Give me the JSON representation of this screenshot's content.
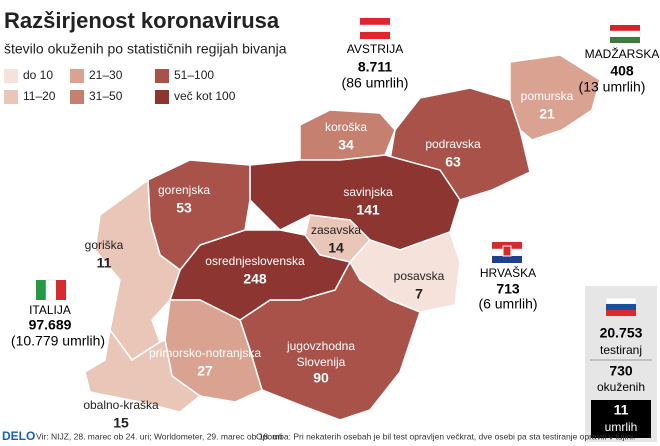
{
  "header": {
    "title": "Razširjenost koronavirusa",
    "subtitle": "število okuženih po statističnih regijah bivanja"
  },
  "legend": [
    {
      "label": "do 10",
      "color": "#f4e2db"
    },
    {
      "label": "11–20",
      "color": "#eac6b9"
    },
    {
      "label": "21–30",
      "color": "#daa291"
    },
    {
      "label": "31–50",
      "color": "#c6806f"
    },
    {
      "label": "51–100",
      "color": "#a9524a"
    },
    {
      "label": "več kot 100",
      "color": "#8d3531"
    }
  ],
  "regions": [
    {
      "name": "pomurska",
      "value": 21,
      "color": "#daa291"
    },
    {
      "name": "podravska",
      "value": 63,
      "color": "#a9524a"
    },
    {
      "name": "koroška",
      "value": 34,
      "color": "#c6806f"
    },
    {
      "name": "savinjska",
      "value": 141,
      "color": "#8d3531"
    },
    {
      "name": "zasavska",
      "value": 14,
      "color": "#eac6b9"
    },
    {
      "name": "posavska",
      "value": 7,
      "color": "#f4e2db"
    },
    {
      "name": "jugovzhodna Slovenija",
      "value": 90,
      "color": "#a9524a"
    },
    {
      "name": "osrednjeslovenska",
      "value": 248,
      "color": "#8d3531"
    },
    {
      "name": "gorenjska",
      "value": 53,
      "color": "#a9524a"
    },
    {
      "name": "goriška",
      "value": 11,
      "color": "#eac6b9"
    },
    {
      "name": "primorsko-notranjska",
      "value": 27,
      "color": "#daa291"
    },
    {
      "name": "obalno-kraška",
      "value": 15,
      "color": "#eac6b9"
    }
  ],
  "countries": [
    {
      "name": "AVSTRIJA",
      "cases": "8.711",
      "deaths": "(86 umrlih)"
    },
    {
      "name": "MADŽARSKA",
      "cases": "408",
      "deaths": "(13 umrlih)"
    },
    {
      "name": "HRVAŠKA",
      "cases": "713",
      "deaths": "(6 umrlih)"
    },
    {
      "name": "ITALIJA",
      "cases": "97.689",
      "deaths": "(10.779 umrlih)"
    }
  ],
  "slovenia": {
    "tested": "20.753",
    "tested_label": "testiranj",
    "infected": "730",
    "infected_label": "okuženih",
    "deaths": "11",
    "deaths_label": "umrlih"
  },
  "footer": {
    "brand": "DELO",
    "source": "Vir: NIJZ, 28. marec ob 24. uri; Worldometer, 29. marec ob 18. uri",
    "note": "Opomba: Pri nekaterih osebah je bil test opravljen večkrat, dve osebi pa sta testiranje opravili v tujini."
  }
}
